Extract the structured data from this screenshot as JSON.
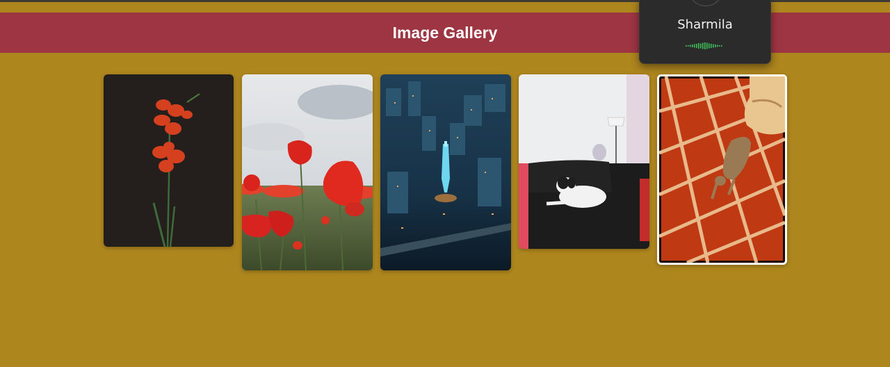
{
  "header": {
    "title": "Image Gallery"
  },
  "call_popup": {
    "caller_name": "Sharmila"
  },
  "gallery": {
    "images": [
      {
        "subject": "red gladiolus flower on dark background"
      },
      {
        "subject": "red poppies field under cloudy sky"
      },
      {
        "subject": "city at night aerial view with lit tower"
      },
      {
        "subject": "small dog resting on black sofa"
      },
      {
        "subject": "cat walking on red tiled floor"
      }
    ],
    "selected_index": 4
  },
  "colors": {
    "background": "#ae861e",
    "header": "#9e3542",
    "popup": "#2b2b2b",
    "voice_wave": "#3fbf5a"
  }
}
